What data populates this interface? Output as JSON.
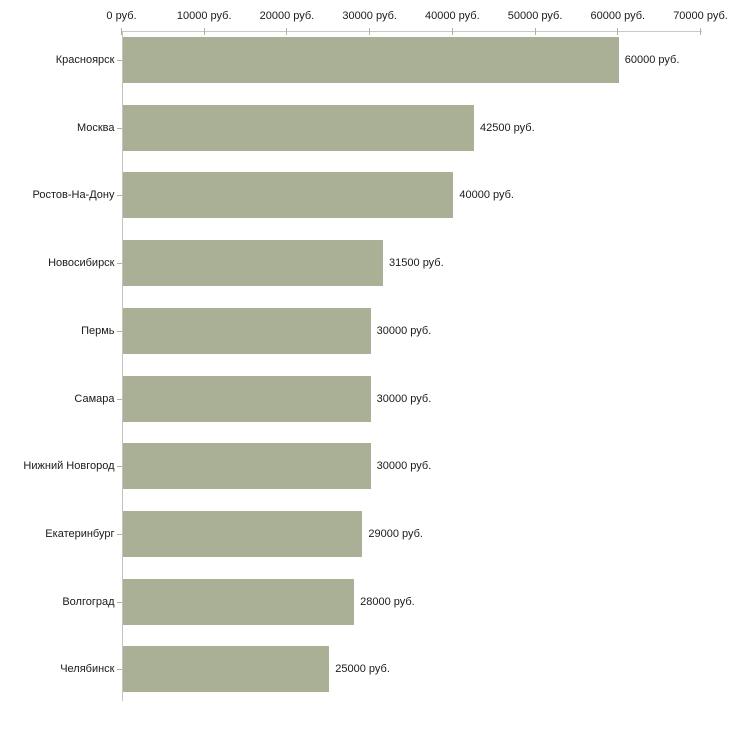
{
  "chart_data": {
    "type": "bar",
    "orientation": "horizontal",
    "title": "",
    "xlabel": "",
    "ylabel": "",
    "categories": [
      "Красноярск",
      "Москва",
      "Ростов-На-Дону",
      "Новосибирск",
      "Пермь",
      "Самара",
      "Нижний Новгород",
      "Екатеринбург",
      "Волгоград",
      "Челябинск"
    ],
    "values": [
      60000,
      42500,
      40000,
      31500,
      30000,
      30000,
      30000,
      29000,
      28000,
      25000
    ],
    "value_labels": [
      "60000 руб.",
      "42500 руб.",
      "40000 руб.",
      "31500 руб.",
      "30000 руб.",
      "30000 руб.",
      "30000 руб.",
      "29000 руб.",
      "28000 руб.",
      "25000 руб."
    ],
    "x_axis": {
      "position": "top",
      "xlim": [
        0,
        70000
      ],
      "ticks": [
        0,
        10000,
        20000,
        30000,
        40000,
        50000,
        60000,
        70000
      ],
      "tick_labels": [
        "0 руб.",
        "10000 руб.",
        "20000 руб.",
        "30000 руб.",
        "40000 руб.",
        "50000 руб.",
        "60000 руб.",
        "70000 руб."
      ]
    },
    "grid": false,
    "legend": false,
    "colors": {
      "bar": "#a9b095",
      "axis_line_h": "#c9c9c9",
      "axis_line_v": "#c3c3c3",
      "tick": "#b5b58a",
      "text": "#1a1a1a",
      "background": "#ffffff"
    }
  }
}
